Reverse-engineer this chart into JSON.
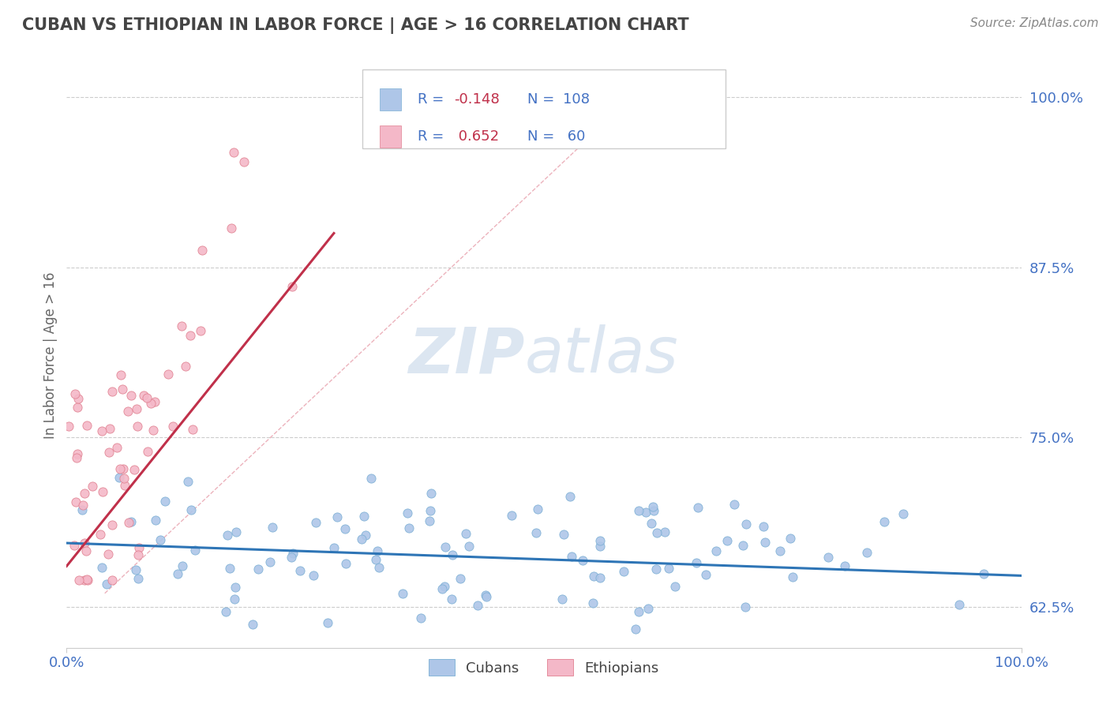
{
  "title": "CUBAN VS ETHIOPIAN IN LABOR FORCE | AGE > 16 CORRELATION CHART",
  "source": "Source: ZipAtlas.com",
  "ylabel": "In Labor Force | Age > 16",
  "xlim": [
    0.0,
    1.0
  ],
  "ylim": [
    0.595,
    1.025
  ],
  "yticks": [
    0.625,
    0.75,
    0.875,
    1.0
  ],
  "ytick_labels": [
    "62.5%",
    "75.0%",
    "87.5%",
    "100.0%"
  ],
  "xtick_labels": [
    "0.0%",
    "100.0%"
  ],
  "title_color": "#444444",
  "title_fontsize": 15,
  "source_color": "#888888",
  "source_fontsize": 11,
  "axis_label_color": "#666666",
  "tick_label_color": "#4472c4",
  "grid_color": "#cccccc",
  "background_color": "#ffffff",
  "watermark_zip": "ZIP",
  "watermark_atlas": "atlas",
  "watermark_color": "#dce6f1",
  "cuban_color_fill": "#aec6e8",
  "cuban_color_edge": "#7bafd4",
  "cuban_line_color": "#2e75b6",
  "cuban_label": "Cubans",
  "cuban_R": -0.148,
  "cuban_N": 108,
  "ethiopian_color_fill": "#f4b8c8",
  "ethiopian_color_edge": "#e08090",
  "ethiopian_line_color": "#c0304a",
  "ethiopian_label": "Ethiopians",
  "ethiopian_R": 0.652,
  "ethiopian_N": 60,
  "legend_R_color": "#c0304a",
  "legend_N_color": "#4472c4",
  "legend_text_color": "#4472c4"
}
